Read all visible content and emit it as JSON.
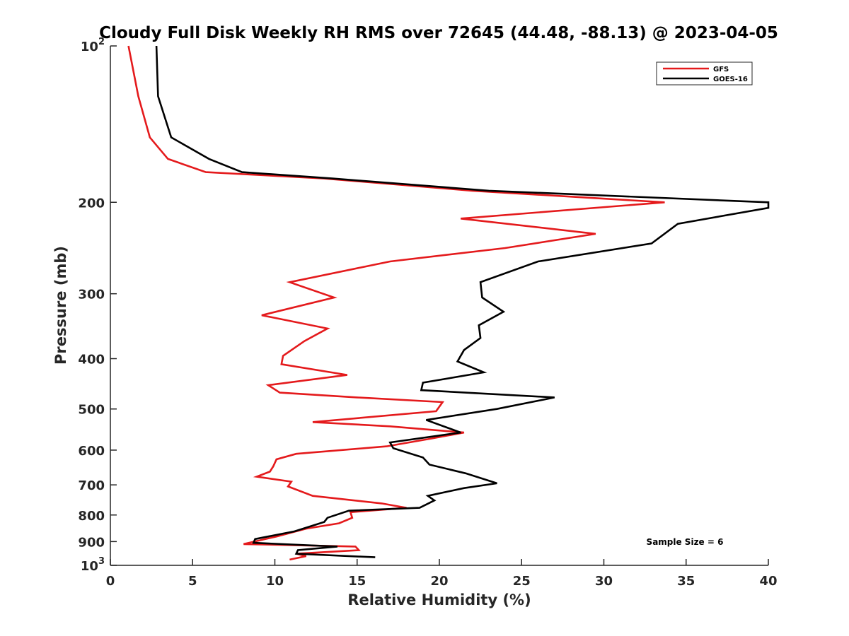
{
  "chart_data": {
    "type": "line",
    "title": "Cloudy Full Disk Weekly RH RMS over 72645 (44.48, -88.13) @ 2023-04-05",
    "xlabel": "Relative Humidity (%)",
    "ylabel": "Pressure (mb)",
    "xlim": [
      0,
      40
    ],
    "ylim": [
      100,
      1000
    ],
    "y_scale": "log",
    "y_reversed": true,
    "grid": false,
    "legend_position": "top-right",
    "x_ticks": [
      0,
      5,
      10,
      15,
      20,
      25,
      30,
      35,
      40
    ],
    "y_ticks": [
      {
        "value": 100,
        "base": "10",
        "exp": "2"
      },
      {
        "value": 200,
        "label": "200"
      },
      {
        "value": 300,
        "label": "300"
      },
      {
        "value": 400,
        "label": "400"
      },
      {
        "value": 500,
        "label": "500"
      },
      {
        "value": 600,
        "label": "600"
      },
      {
        "value": 700,
        "label": "700"
      },
      {
        "value": 800,
        "label": "800"
      },
      {
        "value": 900,
        "label": "900"
      },
      {
        "value": 1000,
        "base": "10",
        "exp": "3"
      }
    ],
    "annotation": "Sample Size = 6",
    "series": [
      {
        "name": "GFS",
        "color": "#e41a1c",
        "points": [
          [
            1.1,
            100
          ],
          [
            1.7,
            125
          ],
          [
            2.4,
            150
          ],
          [
            3.5,
            165
          ],
          [
            5.8,
            175
          ],
          [
            13,
            180
          ],
          [
            22,
            190
          ],
          [
            33.7,
            200
          ],
          [
            21.3,
            215
          ],
          [
            29.5,
            230
          ],
          [
            24,
            245
          ],
          [
            17,
            260
          ],
          [
            10.9,
            285
          ],
          [
            13.6,
            305
          ],
          [
            9.2,
            330
          ],
          [
            13.2,
            350
          ],
          [
            11.8,
            370
          ],
          [
            10.5,
            395
          ],
          [
            10.4,
            410
          ],
          [
            14.4,
            430
          ],
          [
            9.6,
            450
          ],
          [
            10.3,
            465
          ],
          [
            15,
            475
          ],
          [
            20.2,
            485
          ],
          [
            19.8,
            505
          ],
          [
            12.3,
            530
          ],
          [
            17,
            540
          ],
          [
            21.5,
            555
          ],
          [
            19.5,
            570
          ],
          [
            16.8,
            590
          ],
          [
            11.3,
            610
          ],
          [
            10.1,
            625
          ],
          [
            9.9,
            645
          ],
          [
            9.7,
            660
          ],
          [
            8.9,
            675
          ],
          [
            11,
            690
          ],
          [
            10.8,
            705
          ],
          [
            12.3,
            735
          ],
          [
            16.5,
            760
          ],
          [
            18,
            775
          ],
          [
            14.6,
            790
          ],
          [
            14.7,
            810
          ],
          [
            13.9,
            830
          ],
          [
            11.9,
            850
          ],
          [
            10.1,
            880
          ],
          [
            8.1,
            910
          ],
          [
            14.9,
            920
          ],
          [
            15.1,
            935
          ],
          [
            11.3,
            950
          ],
          [
            11.9,
            960
          ],
          [
            10.9,
            975
          ]
        ]
      },
      {
        "name": "GOES-16",
        "color": "#000000",
        "points": [
          [
            2.8,
            100
          ],
          [
            2.9,
            125
          ],
          [
            3.7,
            150
          ],
          [
            6,
            165
          ],
          [
            8,
            175
          ],
          [
            13.5,
            180
          ],
          [
            23,
            190
          ],
          [
            40,
            200
          ],
          [
            40,
            205
          ],
          [
            34.5,
            220
          ],
          [
            32.9,
            240
          ],
          [
            26,
            260
          ],
          [
            22.5,
            285
          ],
          [
            22.6,
            305
          ],
          [
            23.9,
            325
          ],
          [
            22.4,
            345
          ],
          [
            22.5,
            365
          ],
          [
            21.5,
            385
          ],
          [
            21.1,
            405
          ],
          [
            22.7,
            425
          ],
          [
            19,
            445
          ],
          [
            18.9,
            460
          ],
          [
            27,
            475
          ],
          [
            23.5,
            500
          ],
          [
            19.2,
            525
          ],
          [
            21.3,
            555
          ],
          [
            17,
            580
          ],
          [
            17.2,
            595
          ],
          [
            19,
            620
          ],
          [
            19.4,
            640
          ],
          [
            21.6,
            665
          ],
          [
            23.5,
            695
          ],
          [
            21.5,
            710
          ],
          [
            19.3,
            735
          ],
          [
            19.7,
            750
          ],
          [
            18.8,
            775
          ],
          [
            14.5,
            785
          ],
          [
            13.2,
            810
          ],
          [
            13,
            825
          ],
          [
            11.2,
            860
          ],
          [
            8.8,
            890
          ],
          [
            8.7,
            905
          ],
          [
            13.8,
            920
          ],
          [
            11.4,
            935
          ],
          [
            11.3,
            950
          ],
          [
            16.1,
            965
          ]
        ]
      }
    ]
  }
}
